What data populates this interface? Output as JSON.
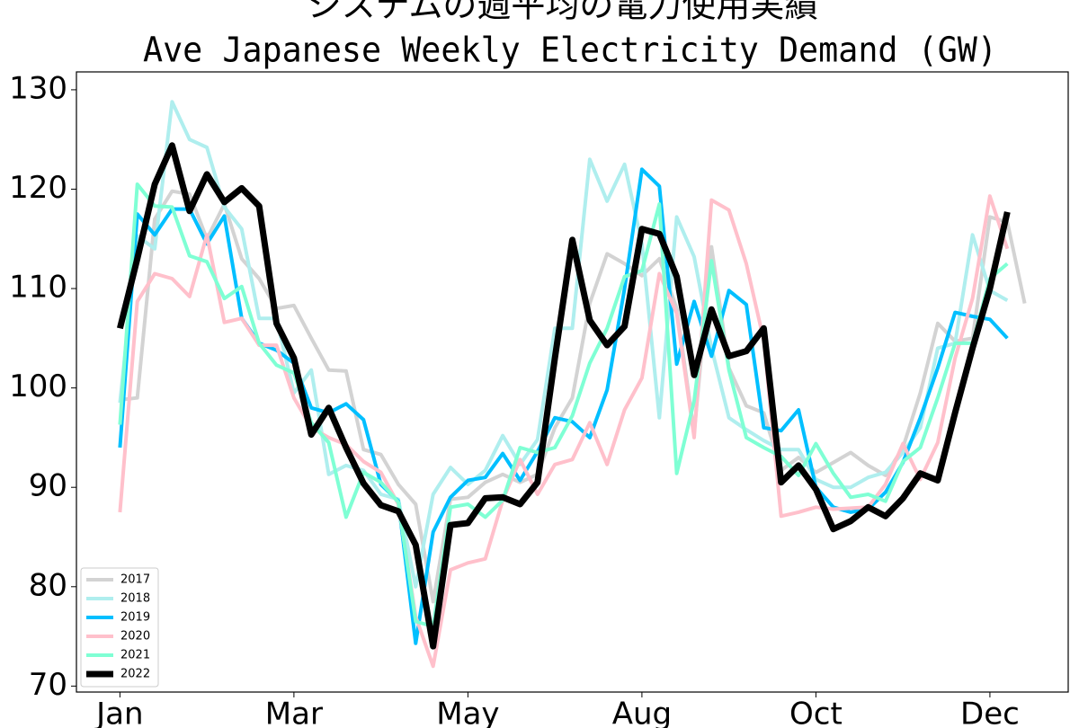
{
  "chart_data": {
    "type": "line",
    "title": "システムの週平均の電力使用実績",
    "subtitle": "Ave Japanese Weekly Electricity Demand (GW)",
    "x": [
      0,
      1,
      2,
      3,
      4,
      5,
      6,
      7,
      8,
      9,
      10,
      11,
      12,
      13,
      14,
      15,
      16,
      17,
      18,
      19,
      20,
      21,
      22,
      23,
      24,
      25,
      26,
      27,
      28,
      29,
      30,
      31,
      32,
      33,
      34,
      35,
      36,
      37,
      38,
      39,
      40,
      41,
      42,
      43,
      44,
      45,
      46,
      47,
      48,
      49,
      50,
      51,
      52
    ],
    "xlim": [
      -2.5,
      54.5
    ],
    "xticks": [
      {
        "value": 0,
        "label": "Jan"
      },
      {
        "value": 10,
        "label": "Mar"
      },
      {
        "value": 20,
        "label": "May"
      },
      {
        "value": 30,
        "label": "Aug"
      },
      {
        "value": 40,
        "label": "Oct"
      },
      {
        "value": 50,
        "label": "Dec"
      }
    ],
    "ylim": [
      69.4,
      131.8
    ],
    "yticks": [
      70,
      80,
      90,
      100,
      110,
      120,
      130
    ],
    "legend": "lower left",
    "series": [
      {
        "name": "2017",
        "color": "#d3d3d3",
        "linewidth": 4,
        "values": [
          98.8,
          99,
          117,
          119.8,
          119.5,
          115,
          118.5,
          113,
          111,
          108,
          108.3,
          105,
          101.8,
          101.7,
          93.8,
          93.3,
          90.3,
          88.3,
          78.5,
          88.8,
          89,
          90.5,
          91.3,
          90.5,
          91.3,
          96,
          99,
          108.5,
          113.5,
          112.5,
          111.3,
          113,
          108,
          95.5,
          114.2,
          102,
          98.2,
          97.5,
          91.7,
          93,
          91.5,
          92.5,
          93.5,
          92.2,
          91.2,
          94,
          99.5,
          106.5,
          104.7,
          105,
          117.2,
          116.7,
          108.5
        ]
      },
      {
        "name": "2018",
        "color": "#afeeee",
        "linewidth": 4,
        "values": [
          98.5,
          115.3,
          114,
          128.8,
          125,
          124.2,
          118.2,
          116,
          107,
          107,
          99.5,
          101.8,
          91.3,
          92.2,
          91.7,
          89.3,
          88.8,
          80,
          89.3,
          92,
          90.3,
          91.7,
          95.2,
          92.3,
          94.8,
          106,
          106,
          123,
          118.8,
          122.5,
          114.5,
          97,
          117.2,
          113.2,
          104,
          97,
          95.8,
          94.7,
          93.8,
          93.8,
          90.8,
          90,
          90,
          91,
          91.5,
          93.5,
          96,
          104,
          104.5,
          115.4,
          109.8,
          108.8,
          null
        ]
      },
      {
        "name": "2019",
        "color": "#00bfff",
        "linewidth": 4,
        "values": [
          94,
          117.5,
          115.4,
          118,
          118,
          114.5,
          117.3,
          107,
          104.5,
          103.8,
          102.5,
          98,
          97.5,
          98.4,
          96.8,
          90.3,
          88.6,
          74.3,
          85.5,
          89,
          90.7,
          91,
          93.4,
          90.7,
          93.6,
          97,
          96.6,
          95,
          99.8,
          110,
          122,
          120.3,
          102.4,
          108.7,
          103.2,
          109.8,
          108.4,
          96,
          95.7,
          97.8,
          90,
          88,
          87.5,
          87.8,
          89.5,
          92.5,
          97,
          102,
          107.6,
          107.2,
          106.9,
          105,
          null
        ]
      },
      {
        "name": "2020",
        "color": "#ffc0cb",
        "linewidth": 4,
        "values": [
          87.5,
          108.7,
          111.5,
          111,
          109.2,
          115.4,
          106.6,
          107,
          104.3,
          104.3,
          99,
          96,
          95,
          94.3,
          92.6,
          91.5,
          88.3,
          77,
          72,
          81.7,
          82.4,
          82.8,
          88.7,
          92.8,
          89.3,
          92.3,
          92.8,
          96.5,
          92.3,
          97.8,
          101,
          111.5,
          107.5,
          95,
          118.9,
          117.9,
          112.5,
          104.8,
          87.1,
          87.5,
          88,
          87.8,
          87.9,
          88,
          90.3,
          94.4,
          90.8,
          94.5,
          103,
          109,
          119.3,
          114,
          null
        ]
      },
      {
        "name": "2021",
        "color": "#7fffd4",
        "linewidth": 4,
        "values": [
          96.3,
          120.5,
          118.3,
          118.2,
          113.3,
          112.7,
          109,
          110.2,
          104.5,
          102.3,
          101.5,
          96.5,
          94.5,
          87,
          91.5,
          90.5,
          88.5,
          76.5,
          76,
          88,
          88.3,
          87,
          88.7,
          94,
          93.5,
          94,
          97.2,
          102.5,
          106,
          111.2,
          111.8,
          118.5,
          91.4,
          98.7,
          112.8,
          101.8,
          95,
          94,
          93.1,
          91.2,
          94.4,
          91.4,
          89,
          89.3,
          88.6,
          92.6,
          94,
          99,
          104.5,
          104.5,
          111,
          112.5,
          null
        ]
      },
      {
        "name": "2022",
        "color": "#000000",
        "linewidth": 7,
        "values": [
          106,
          113,
          120.5,
          124.4,
          117.8,
          121.5,
          118.7,
          120.1,
          118.3,
          106.5,
          103,
          95.3,
          98,
          94,
          90.4,
          88.2,
          87.6,
          84.2,
          74,
          86.2,
          86.4,
          88.9,
          89,
          88.3,
          90.5,
          103,
          114.9,
          106.8,
          104.3,
          106.2,
          116,
          115.5,
          111.2,
          101.3,
          107.9,
          103.2,
          103.7,
          106,
          90.5,
          92.2,
          89.8,
          85.8,
          86.6,
          88,
          87.1,
          88.9,
          91.4,
          90.7,
          97.5,
          104,
          110,
          117.7,
          null
        ]
      }
    ]
  }
}
